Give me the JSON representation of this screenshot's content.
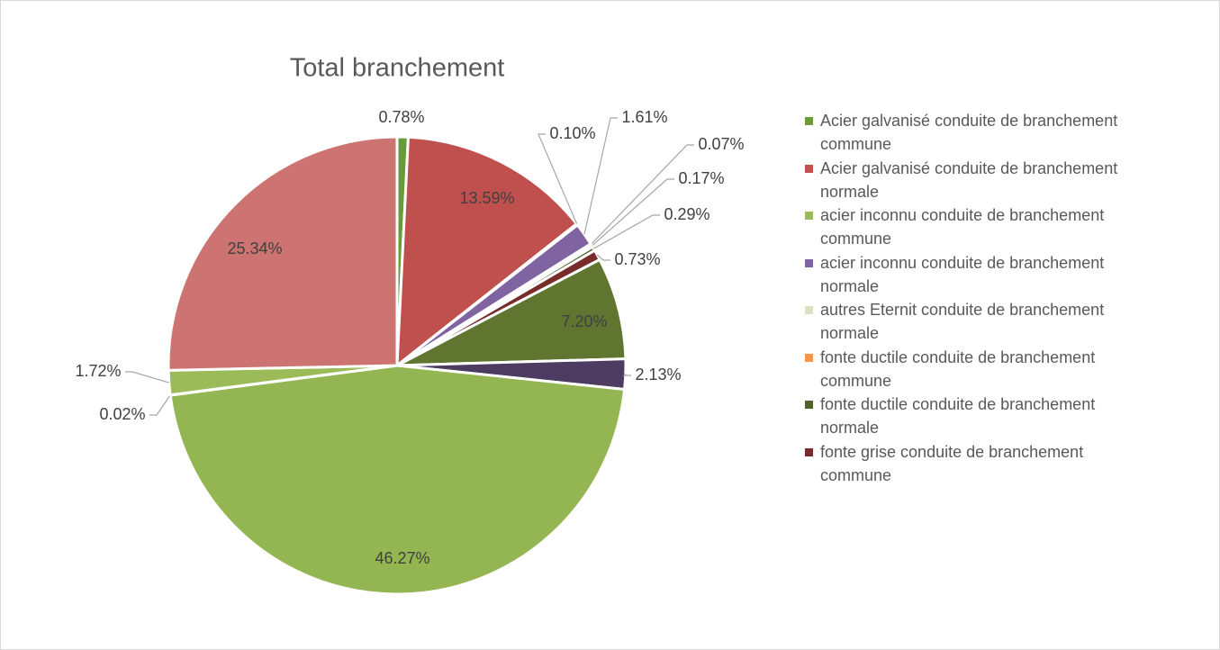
{
  "chart_data": {
    "type": "pie",
    "title": "Total branchement",
    "categories": [
      "Acier galvanisé conduite de branchement commune",
      "Acier galvanisé conduite de branchement normale",
      "acier inconnu conduite de branchement commune",
      "acier inconnu conduite de branchement normale",
      "autres Eternit conduite de branchement normale",
      "fonte ductile conduite de branchement commune",
      "fonte ductile conduite de branchement normale",
      "fonte grise conduite de branchement commune",
      null,
      null,
      null,
      null,
      null,
      null
    ],
    "values": [
      0.78,
      13.59,
      0.1,
      1.61,
      0.07,
      0.17,
      0.29,
      0.73,
      7.2,
      2.13,
      46.27,
      0.02,
      1.72,
      25.34
    ],
    "value_labels": [
      "0.78%",
      "13.59%",
      "0.10%",
      "1.61%",
      "0.07%",
      "0.17%",
      "0.29%",
      "0.73%",
      "7.20%",
      "2.13%",
      "46.27%",
      "0.02%",
      "1.72%",
      "25.34%"
    ],
    "colors": [
      "#6a9b3b",
      "#c0504d",
      "#9bbb59",
      "#8064a2",
      "#d7e4bd",
      "#f79646",
      "#4f6228",
      "#772c2a",
      "#5f7530",
      "#4d3b62",
      "#93b552",
      "#b9cd96",
      "#9bbb59",
      "#cd7371"
    ],
    "legend": "right"
  }
}
